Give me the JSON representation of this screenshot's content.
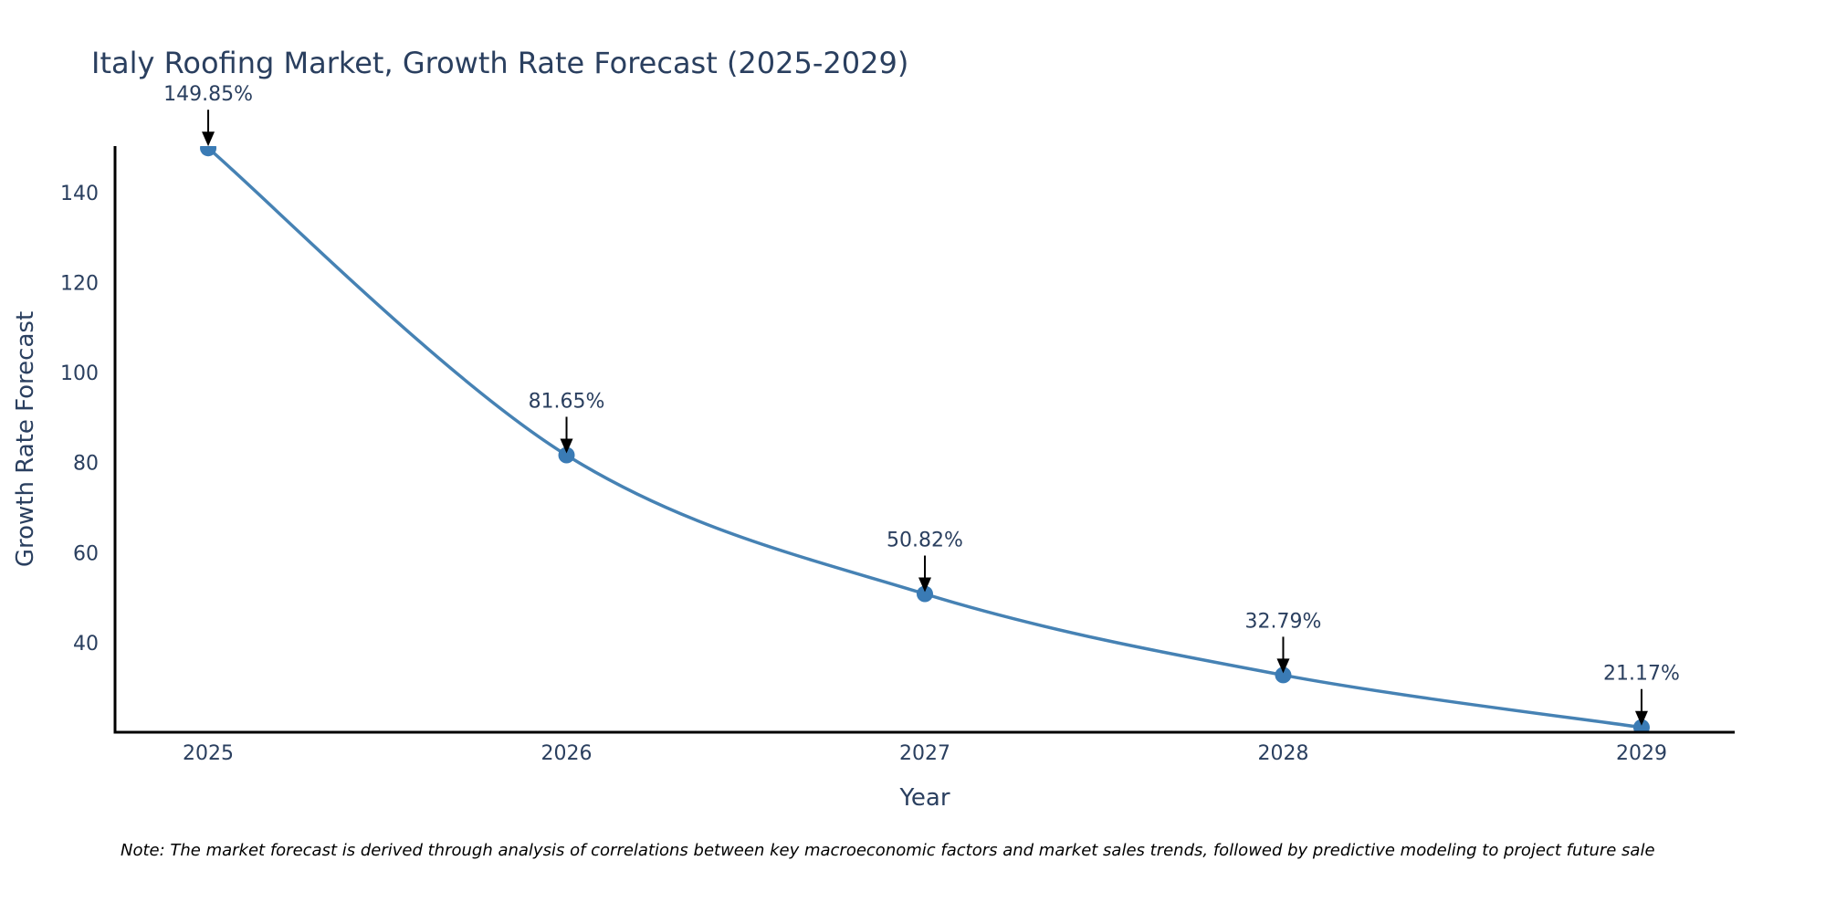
{
  "chart_data": {
    "type": "line",
    "title": "Italy Roofing Market, Growth Rate Forecast (2025-2029)",
    "xlabel": "Year",
    "ylabel": "Growth Rate Forecast",
    "categories": [
      "2025",
      "2026",
      "2027",
      "2028",
      "2029"
    ],
    "series": [
      {
        "name": "Growth Rate Forecast",
        "values": [
          149.85,
          81.65,
          50.82,
          32.79,
          21.17
        ],
        "labels": [
          "149.85%",
          "81.65%",
          "50.82%",
          "32.79%",
          "21.17%"
        ],
        "color": "#4682B4"
      }
    ],
    "yticks": [
      40,
      60,
      80,
      100,
      120,
      140
    ],
    "ylim": [
      20.1,
      150.3
    ],
    "xlim": [
      2024.74,
      2029.26
    ],
    "grid": false,
    "legend": "none",
    "line_shape": "spline",
    "note": "Note: The market forecast is derived through analysis of correlations between key macroeconomic factors and market sales trends, followed by predictive modeling to project future sale"
  },
  "colors": {
    "text": "#2a3f5f",
    "axis": "#000000",
    "line": "#4682B4",
    "marker": "#3A7BB5",
    "arrow": "#000000"
  }
}
